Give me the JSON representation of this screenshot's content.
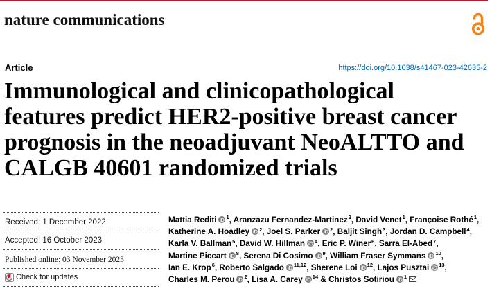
{
  "colors": {
    "accent": "#e4002b",
    "open_access": "#f68212",
    "link": "#0067b1"
  },
  "header": {
    "journal": "nature communications",
    "open_access_icon": "open-access-icon"
  },
  "article": {
    "type_label": "Article",
    "doi": "https://doi.org/10.1038/s41467-023-42635-2",
    "title_lines": [
      "Immunological and clinicopathological",
      "features predict HER2-positive breast cancer",
      "prognosis in the neoadjuvant NeoALTTO and",
      "CALGB 40601 randomized trials"
    ]
  },
  "history": {
    "received": "Received: 1 December 2022",
    "accepted": "Accepted: 16 October 2023",
    "published": "Published online: 03 November 2023",
    "check_updates": {
      "label": "Check for updates",
      "icon": "check-for-updates-icon"
    }
  },
  "authors": {
    "lines": [
      [
        {
          "name": "Mattia Rediti",
          "icon": "orcid-icon",
          "sup": "1",
          "sep": ", "
        },
        {
          "name": "Aranzazu Fernandez-Martinez",
          "sup": "2",
          "sep": ", "
        },
        {
          "name": "David Venet",
          "sup": "1",
          "sep": ", "
        },
        {
          "name": "Françoise Rothé",
          "sup": "1",
          "sep": ","
        }
      ],
      [
        {
          "name": "Katherine A. Hoadley",
          "icon": "orcid-icon",
          "sup": "2",
          "sep": ", "
        },
        {
          "name": "Joel S. Parker",
          "icon": "orcid-icon",
          "sup": "2",
          "sep": ", "
        },
        {
          "name": "Baljit Singh",
          "sup": "3",
          "sep": ", "
        },
        {
          "name": "Jordan D. Campbell",
          "sup": "4",
          "sep": ","
        }
      ],
      [
        {
          "name": "Karla V. Ballman",
          "sup": "5",
          "sep": ", "
        },
        {
          "name": "David W. Hillman",
          "icon": "orcid-icon",
          "sup": "4",
          "sep": ", "
        },
        {
          "name": "Eric P. Winer",
          "sup": "6",
          "sep": ", "
        },
        {
          "name": "Sarra El-Abed",
          "sup": "7",
          "sep": ","
        }
      ],
      [
        {
          "name": "Martine Piccart",
          "icon": "orcid-icon",
          "sup": "8",
          "sep": ", "
        },
        {
          "name": "Serena Di Cosimo",
          "icon": "orcid-icon",
          "sup": "9",
          "sep": ", "
        },
        {
          "name": "William Fraser Symmans",
          "icon": "orcid-icon",
          "sup": "10",
          "sep": ","
        }
      ],
      [
        {
          "name": "Ian E. Krop",
          "sup": "6",
          "sep": ", "
        },
        {
          "name": "Roberto Salgado",
          "icon": "orcid-icon",
          "sup": "11,12",
          "sep": ", "
        },
        {
          "name": "Sherene Loi",
          "icon": "orcid-icon",
          "sup": "12",
          "sep": ", "
        },
        {
          "name": "Lajos Pusztai",
          "icon": "orcid-icon",
          "sup": "13",
          "sep": ","
        }
      ],
      [
        {
          "name": "Charles M. Perou",
          "icon": "orcid-icon",
          "sup": "2",
          "sep": ", "
        },
        {
          "name": "Lisa A. Carey",
          "icon": "orcid-icon",
          "sup": "14",
          "sep": " & "
        },
        {
          "name": "Christos Sotiriou",
          "icon": "orcid-icon",
          "sup": "1",
          "contact_icon": "envelope-icon"
        }
      ]
    ]
  }
}
